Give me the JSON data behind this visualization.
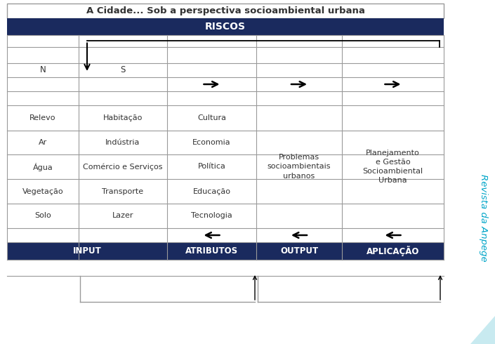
{
  "title": "A Cidade... Sob a perspectiva socioambiental urbana",
  "riscos_label": "RISCOS",
  "dark_blue": "#1a2a5e",
  "white": "#ffffff",
  "border_color": "#9a9a9a",
  "text_dark": "#333333",
  "teal_color": "#00a5c8",
  "bottom_labels": [
    "INPUT",
    "ATRIBUTOS",
    "OUTPUT",
    "APLICAÇÃO"
  ],
  "input_col1": [
    "Relevo",
    "Ar",
    "Água",
    "Vegetação",
    "Solo"
  ],
  "input_col2": [
    "Habitação",
    "Indústria",
    "Comércio e Serviços",
    "Transporte",
    "Lazer"
  ],
  "atrib_col": [
    "Cultura",
    "Economia",
    "Política",
    "Educação",
    "Tecnologia"
  ],
  "output_text": "Problemas\nsocioambientais\nurbanos",
  "aplicacao_text": "Planejamento\ne Gestão\nSocioambiental\nUrbana",
  "revista_text": "Revista da Anpege",
  "fig_width": 7.05,
  "fig_height": 4.9,
  "dpi": 100
}
